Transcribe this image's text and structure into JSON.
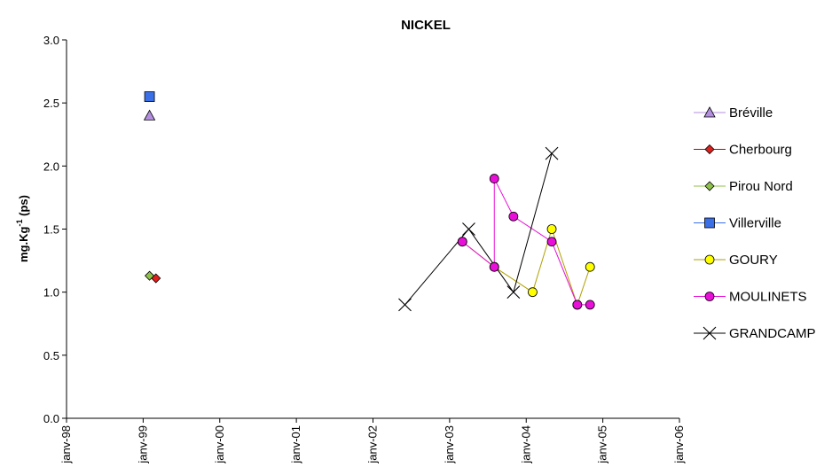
{
  "chart_data": {
    "type": "scatter",
    "title": "NICKEL",
    "xlabel": "",
    "ylabel": "mg.Kg⁻¹ (ps)",
    "x_ticks": [
      "janv-98",
      "janv-99",
      "janv-00",
      "janv-01",
      "janv-02",
      "janv-03",
      "janv-04",
      "janv-05",
      "janv-06"
    ],
    "xlim": [
      "1998-01",
      "2006-01"
    ],
    "ylim": [
      0,
      3.0
    ],
    "y_ticks": [
      "0.0",
      "0.5",
      "1.0",
      "1.5",
      "2.0",
      "2.5",
      "3.0"
    ],
    "grid": false,
    "legend_position": "right",
    "series": [
      {
        "name": "Bréville",
        "marker": "triangle",
        "color": "#b48fe0",
        "line": "#b48fe0",
        "connected": false,
        "points": [
          {
            "x": "1999-02",
            "y": 2.4
          }
        ]
      },
      {
        "name": "Cherbourg",
        "marker": "diamond",
        "color": "#e0201c",
        "line": "#c00000",
        "connected": false,
        "points": [
          {
            "x": "1999-03",
            "y": 1.11
          }
        ]
      },
      {
        "name": "Pirou Nord",
        "marker": "diamond",
        "color": "#8fc24a",
        "line": "#8fc24a",
        "connected": false,
        "points": [
          {
            "x": "1999-02",
            "y": 1.13
          }
        ]
      },
      {
        "name": "Villerville",
        "marker": "square",
        "color": "#3a6fe8",
        "line": "#3a6fe8",
        "connected": false,
        "points": [
          {
            "x": "1999-02",
            "y": 2.55
          }
        ]
      },
      {
        "name": "GOURY",
        "marker": "circle",
        "color": "#ffff00",
        "line": "#b0a000",
        "connected": true,
        "points": [
          {
            "x": "2003-03",
            "y": 1.4
          },
          {
            "x": "2003-08",
            "y": 1.2
          },
          {
            "x": "2004-02",
            "y": 1.0
          },
          {
            "x": "2004-05",
            "y": 1.5
          },
          {
            "x": "2004-09",
            "y": 0.9
          },
          {
            "x": "2004-11",
            "y": 1.2
          }
        ]
      },
      {
        "name": "MOULINETS",
        "marker": "circle",
        "color": "#e810d8",
        "line": "#e810d8",
        "connected": true,
        "points": [
          {
            "x": "2003-03",
            "y": 1.4
          },
          {
            "x": "2003-08",
            "y": 1.2
          },
          {
            "x": "2003-08",
            "y": 1.9
          },
          {
            "x": "2003-11",
            "y": 1.6
          },
          {
            "x": "2004-05",
            "y": 1.4
          },
          {
            "x": "2004-09",
            "y": 0.9
          },
          {
            "x": "2004-11",
            "y": 0.9
          }
        ]
      },
      {
        "name": "GRANDCAMP",
        "marker": "x",
        "color": "#000000",
        "line": "#000000",
        "connected": true,
        "points": [
          {
            "x": "2002-06",
            "y": 0.9
          },
          {
            "x": "2003-04",
            "y": 1.5
          },
          {
            "x": "2003-11",
            "y": 1.0
          },
          {
            "x": "2004-05",
            "y": 2.1
          }
        ]
      }
    ]
  }
}
